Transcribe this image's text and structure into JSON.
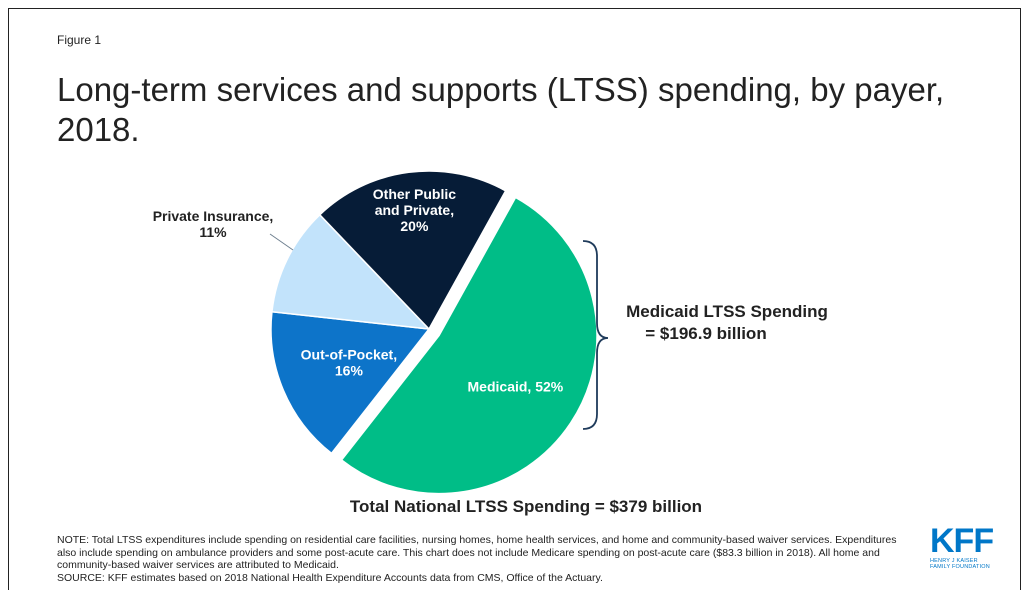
{
  "figure_label": "Figure 1",
  "title": "Long-term services and supports (LTSS) spending, by payer, 2018.",
  "chart_data": {
    "type": "pie",
    "title": "Long-term services and supports (LTSS) spending, by payer, 2018.",
    "slices": [
      {
        "name": "Medicaid",
        "value": 52,
        "label_lines": [
          "Medicaid, 52%"
        ],
        "color": "#00bd87",
        "exploded": true
      },
      {
        "name": "Out-of-Pocket",
        "value": 16,
        "label_lines": [
          "Out-of-Pocket,",
          "16%"
        ],
        "color": "#0d74c9"
      },
      {
        "name": "Private Insurance",
        "value": 11,
        "label_lines": [
          "Private Insurance,",
          "11%"
        ],
        "color": "#c2e3fb"
      },
      {
        "name": "Other Public and Private",
        "value": 20,
        "label_lines": [
          "Other Public",
          "and Private,",
          "20%"
        ],
        "color": "#061c37"
      }
    ],
    "medicaid_callout": [
      "Medicaid LTSS Spending",
      "= $196.9 billion"
    ],
    "total_label": "Total National LTSS Spending = $379 billion"
  },
  "note": "NOTE: Total LTSS expenditures include spending on residential care facilities, nursing homes, home health services, and home and community-based waiver services. Expenditures also include spending on ambulance providers and some post-acute care. This chart does not include Medicare spending on post-acute care ($83.3 billion in 2018). All home and community-based waiver services are attributed to Medicaid.",
  "source": "SOURCE: KFF estimates based on 2018 National Health Expenditure Accounts data from CMS, Office of the Actuary.",
  "logo": {
    "word": "KFF",
    "line1": "HENRY J KAISER",
    "line2": "FAMILY FOUNDATION",
    "color": "#0077c8"
  }
}
